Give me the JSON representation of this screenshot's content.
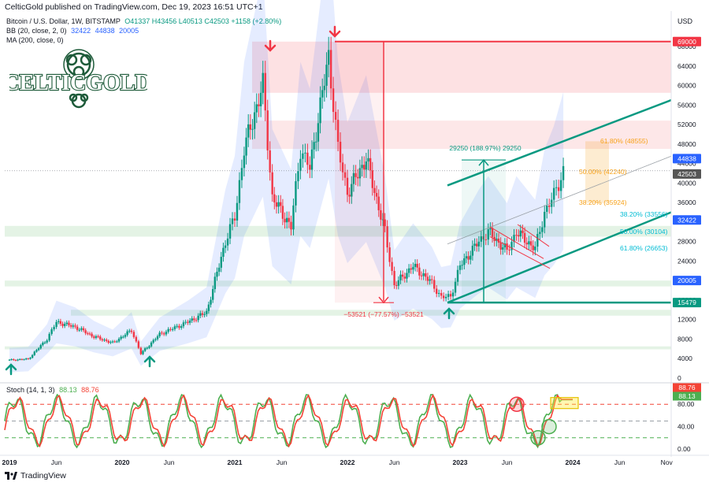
{
  "header": {
    "published": "CelticGold published on TradingView.com, Dec 19, 2023 16:51 UTC+1"
  },
  "legend": {
    "symbol": "Bitcoin / U.S. Dollar, 1W, BITSTAMP",
    "ohlc": "O41337 H43456 L40513 C42503 +1158 (+2.80%)",
    "bb_label": "BB (20, close, 2, 0)",
    "bb_values": [
      "32422",
      "44838",
      "20005"
    ],
    "ma_label": "MA (200, close, 0)",
    "stoch_label": "Stoch (14, 1, 3)",
    "stoch_values": [
      "88.13",
      "88.76"
    ]
  },
  "logo": {
    "text": "CELTICGOLD"
  },
  "footer": {
    "brand": "TradingView"
  },
  "colors": {
    "up": "#089981",
    "down": "#f23645",
    "bb": "#2962ff",
    "fib": "#f7a21b",
    "fib_cyan": "#00bcd4",
    "trend": "#089981",
    "stoch_k": "#4caf50",
    "stoch_d": "#f44336"
  },
  "chart_data": [
    {
      "type": "candlestick",
      "title": "",
      "currency": "USD",
      "x_axis_labels": [
        "2019",
        "Jun",
        "2020",
        "Jun",
        "2021",
        "Jun",
        "2022",
        "Jun",
        "2023",
        "Jun",
        "2024",
        "Jun",
        "Nov"
      ],
      "y_ticks": [
        0,
        4000,
        8000,
        12000,
        16000,
        20000,
        24000,
        28000,
        32000,
        36000,
        40000,
        44000,
        48000,
        52000,
        56000,
        60000,
        64000,
        68000
      ],
      "ylim": [
        0,
        70000
      ],
      "price_tags": [
        {
          "label": "69000",
          "role": "resistance",
          "color": "#f23645"
        },
        {
          "label": "44838",
          "role": "bb-upper",
          "color": "#2962ff"
        },
        {
          "label": "42503",
          "role": "last",
          "color": "#555555"
        },
        {
          "label": "32422",
          "role": "bb-basis",
          "color": "#2962ff"
        },
        {
          "label": "20005",
          "role": "bb-lower",
          "color": "#2962ff"
        },
        {
          "label": "15479",
          "role": "support",
          "color": "#089981"
        }
      ],
      "close_path": [
        [
          "2019-01",
          3700
        ],
        [
          "2019-03",
          3900
        ],
        [
          "2019-05",
          8000
        ],
        [
          "2019-06",
          11500
        ],
        [
          "2019-08",
          10500
        ],
        [
          "2019-10",
          8500
        ],
        [
          "2019-12",
          7200
        ],
        [
          "2020-02",
          9800
        ],
        [
          "2020-03",
          5000
        ],
        [
          "2020-05",
          9000
        ],
        [
          "2020-08",
          11500
        ],
        [
          "2020-10",
          13500
        ],
        [
          "2020-12",
          28000
        ],
        [
          "2021-01",
          33000
        ],
        [
          "2021-02",
          47000
        ],
        [
          "2021-04",
          60000
        ],
        [
          "2021-05",
          37000
        ],
        [
          "2021-07",
          31000
        ],
        [
          "2021-08",
          47000
        ],
        [
          "2021-09",
          43000
        ],
        [
          "2021-11",
          66000
        ],
        [
          "2021-12",
          47000
        ],
        [
          "2022-01",
          38000
        ],
        [
          "2022-03",
          45000
        ],
        [
          "2022-05",
          30000
        ],
        [
          "2022-06",
          19000
        ],
        [
          "2022-08",
          23000
        ],
        [
          "2022-10",
          19500
        ],
        [
          "2022-11",
          16500
        ],
        [
          "2022-12",
          16800
        ],
        [
          "2023-01",
          23000
        ],
        [
          "2023-03",
          28000
        ],
        [
          "2023-04",
          30000
        ],
        [
          "2023-06",
          26000
        ],
        [
          "2023-07",
          30000
        ],
        [
          "2023-09",
          26500
        ],
        [
          "2023-10",
          34000
        ],
        [
          "2023-11",
          37500
        ],
        [
          "2023-12",
          42503
        ]
      ],
      "annotations": [
        {
          "text": "29250 (188.97%) 29250",
          "type": "measure-up"
        },
        {
          "text": "−53521 (−77.57%) −53521",
          "type": "measure-down"
        },
        {
          "text": "61.80% (48555)",
          "type": "fib"
        },
        {
          "text": "50.00% (42240)",
          "type": "fib"
        },
        {
          "text": "38.20% (35924)",
          "type": "fib"
        },
        {
          "text": "38.20% (33556)",
          "type": "fib-cyan"
        },
        {
          "text": "50.00% (30104)",
          "type": "fib-cyan"
        },
        {
          "text": "61.80% (26653)",
          "type": "fib-cyan"
        }
      ]
    },
    {
      "type": "line",
      "title": "Stoch (14, 1, 3)",
      "y_ticks": [
        "0.00",
        "40.00",
        "80.00"
      ],
      "ylim": [
        0,
        100
      ],
      "levels": [
        80,
        50,
        20
      ],
      "last_values": {
        "k": "88.13",
        "d": "88.76"
      }
    }
  ]
}
